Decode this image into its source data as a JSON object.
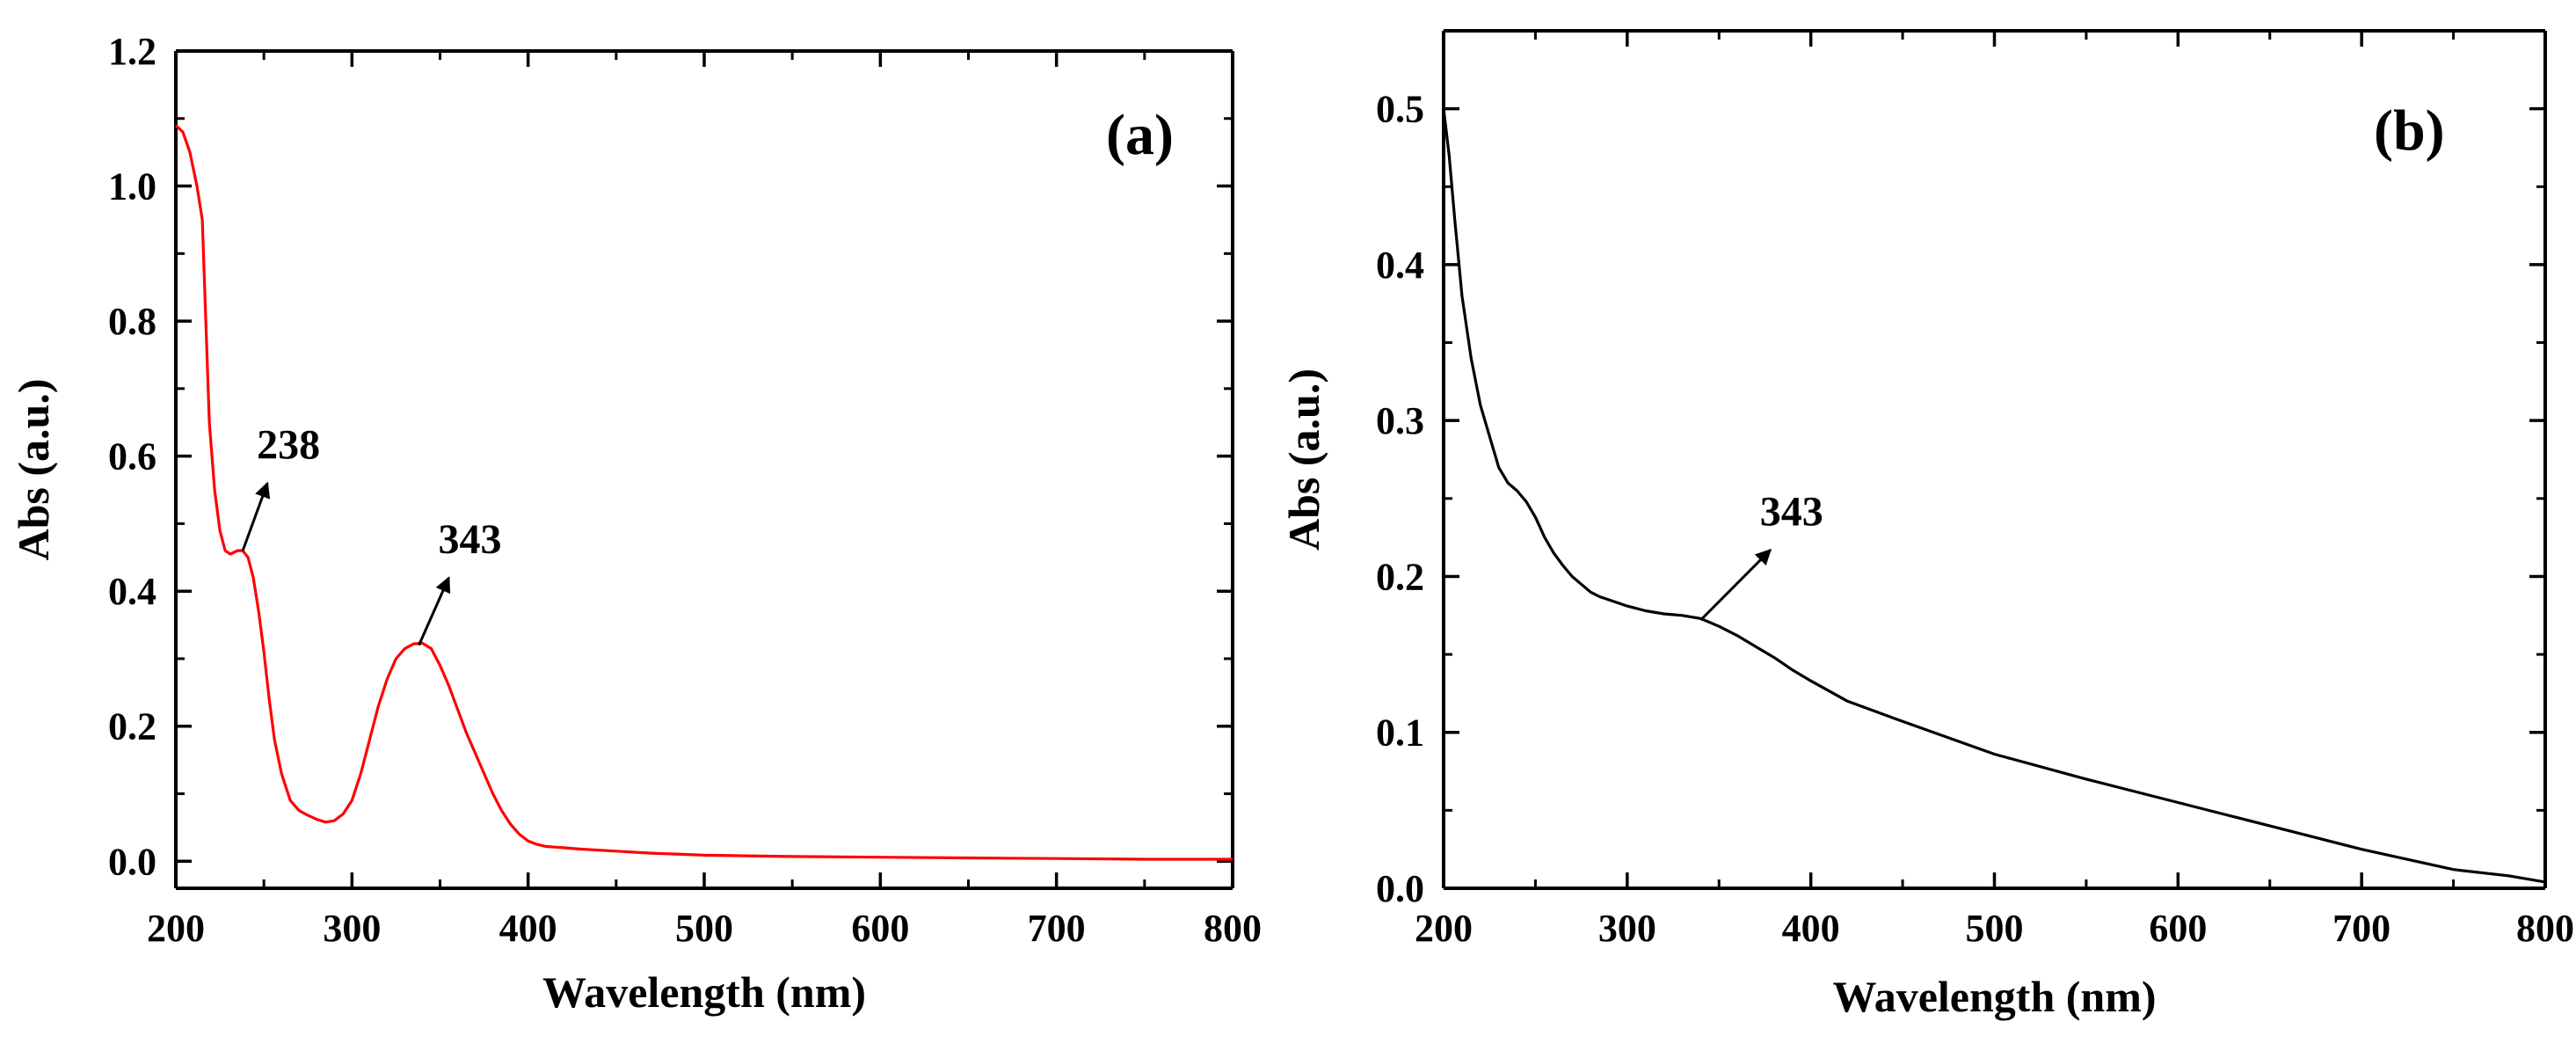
{
  "chart_data": [
    {
      "type": "line",
      "panel_label": "(a)",
      "xlabel": "Wavelength (nm)",
      "ylabel": "Abs (a.u.)",
      "xlim": [
        200,
        800
      ],
      "ylim": [
        -0.04,
        1.2
      ],
      "xticks": [
        200,
        300,
        400,
        500,
        600,
        700,
        800
      ],
      "yticks": [
        0.0,
        0.2,
        0.4,
        0.6,
        0.8,
        1.0,
        1.2
      ],
      "ytick_labels": [
        "0.0",
        "0.2",
        "0.4",
        "0.6",
        "0.8",
        "1.0",
        "1.2"
      ],
      "line_color": "#ff0000",
      "series": [
        {
          "name": "spectrum-a",
          "x": [
            200,
            204,
            208,
            212,
            215,
            217,
            219,
            222,
            225,
            228,
            231,
            235,
            238,
            241,
            244,
            247,
            250,
            253,
            256,
            260,
            265,
            270,
            275,
            280,
            285,
            290,
            295,
            300,
            305,
            310,
            315,
            320,
            325,
            330,
            335,
            340,
            345,
            350,
            355,
            360,
            365,
            370,
            375,
            380,
            385,
            390,
            395,
            400,
            405,
            410,
            420,
            430,
            450,
            470,
            500,
            550,
            600,
            650,
            700,
            750,
            800
          ],
          "y": [
            1.09,
            1.08,
            1.05,
            1.0,
            0.95,
            0.8,
            0.65,
            0.55,
            0.49,
            0.46,
            0.455,
            0.46,
            0.46,
            0.45,
            0.42,
            0.37,
            0.31,
            0.24,
            0.18,
            0.13,
            0.09,
            0.075,
            0.068,
            0.062,
            0.058,
            0.06,
            0.07,
            0.09,
            0.13,
            0.18,
            0.23,
            0.27,
            0.3,
            0.315,
            0.322,
            0.323,
            0.315,
            0.29,
            0.26,
            0.225,
            0.19,
            0.16,
            0.13,
            0.1,
            0.075,
            0.055,
            0.04,
            0.03,
            0.025,
            0.022,
            0.02,
            0.018,
            0.015,
            0.012,
            0.009,
            0.007,
            0.006,
            0.005,
            0.004,
            0.003,
            0.003
          ]
        }
      ],
      "annotations": [
        {
          "text": "238",
          "from": [
            238,
            0.46
          ],
          "to": [
            252,
            0.56
          ]
        },
        {
          "text": "343",
          "from": [
            338,
            0.32
          ],
          "to": [
            355,
            0.42
          ]
        }
      ]
    },
    {
      "type": "line",
      "panel_label": "(b)",
      "xlabel": "Wavelength (nm)",
      "ylabel": "Abs (a.u.)",
      "xlim": [
        200,
        800
      ],
      "ylim": [
        0,
        0.55
      ],
      "xticks": [
        200,
        300,
        400,
        500,
        600,
        700,
        800
      ],
      "yticks": [
        0.0,
        0.1,
        0.2,
        0.3,
        0.4,
        0.5
      ],
      "ytick_labels": [
        "0.0",
        "0.1",
        "0.2",
        "0.3",
        "0.4",
        "0.5"
      ],
      "line_color": "#000000",
      "series": [
        {
          "name": "spectrum-b",
          "x": [
            200,
            203,
            206,
            210,
            215,
            220,
            225,
            230,
            235,
            240,
            245,
            250,
            255,
            260,
            265,
            270,
            275,
            280,
            285,
            290,
            300,
            310,
            320,
            330,
            340,
            350,
            360,
            370,
            380,
            390,
            400,
            420,
            450,
            500,
            550,
            600,
            650,
            700,
            750,
            780,
            800
          ],
          "y": [
            0.5,
            0.47,
            0.43,
            0.38,
            0.34,
            0.31,
            0.29,
            0.27,
            0.26,
            0.255,
            0.248,
            0.238,
            0.225,
            0.215,
            0.207,
            0.2,
            0.195,
            0.19,
            0.187,
            0.185,
            0.181,
            0.178,
            0.176,
            0.175,
            0.173,
            0.168,
            0.162,
            0.155,
            0.148,
            0.14,
            0.133,
            0.12,
            0.107,
            0.086,
            0.07,
            0.055,
            0.04,
            0.025,
            0.012,
            0.008,
            0.004
          ]
        }
      ],
      "annotations": [
        {
          "text": "343",
          "from": [
            340,
            0.172
          ],
          "to": [
            378,
            0.217
          ]
        }
      ]
    }
  ]
}
